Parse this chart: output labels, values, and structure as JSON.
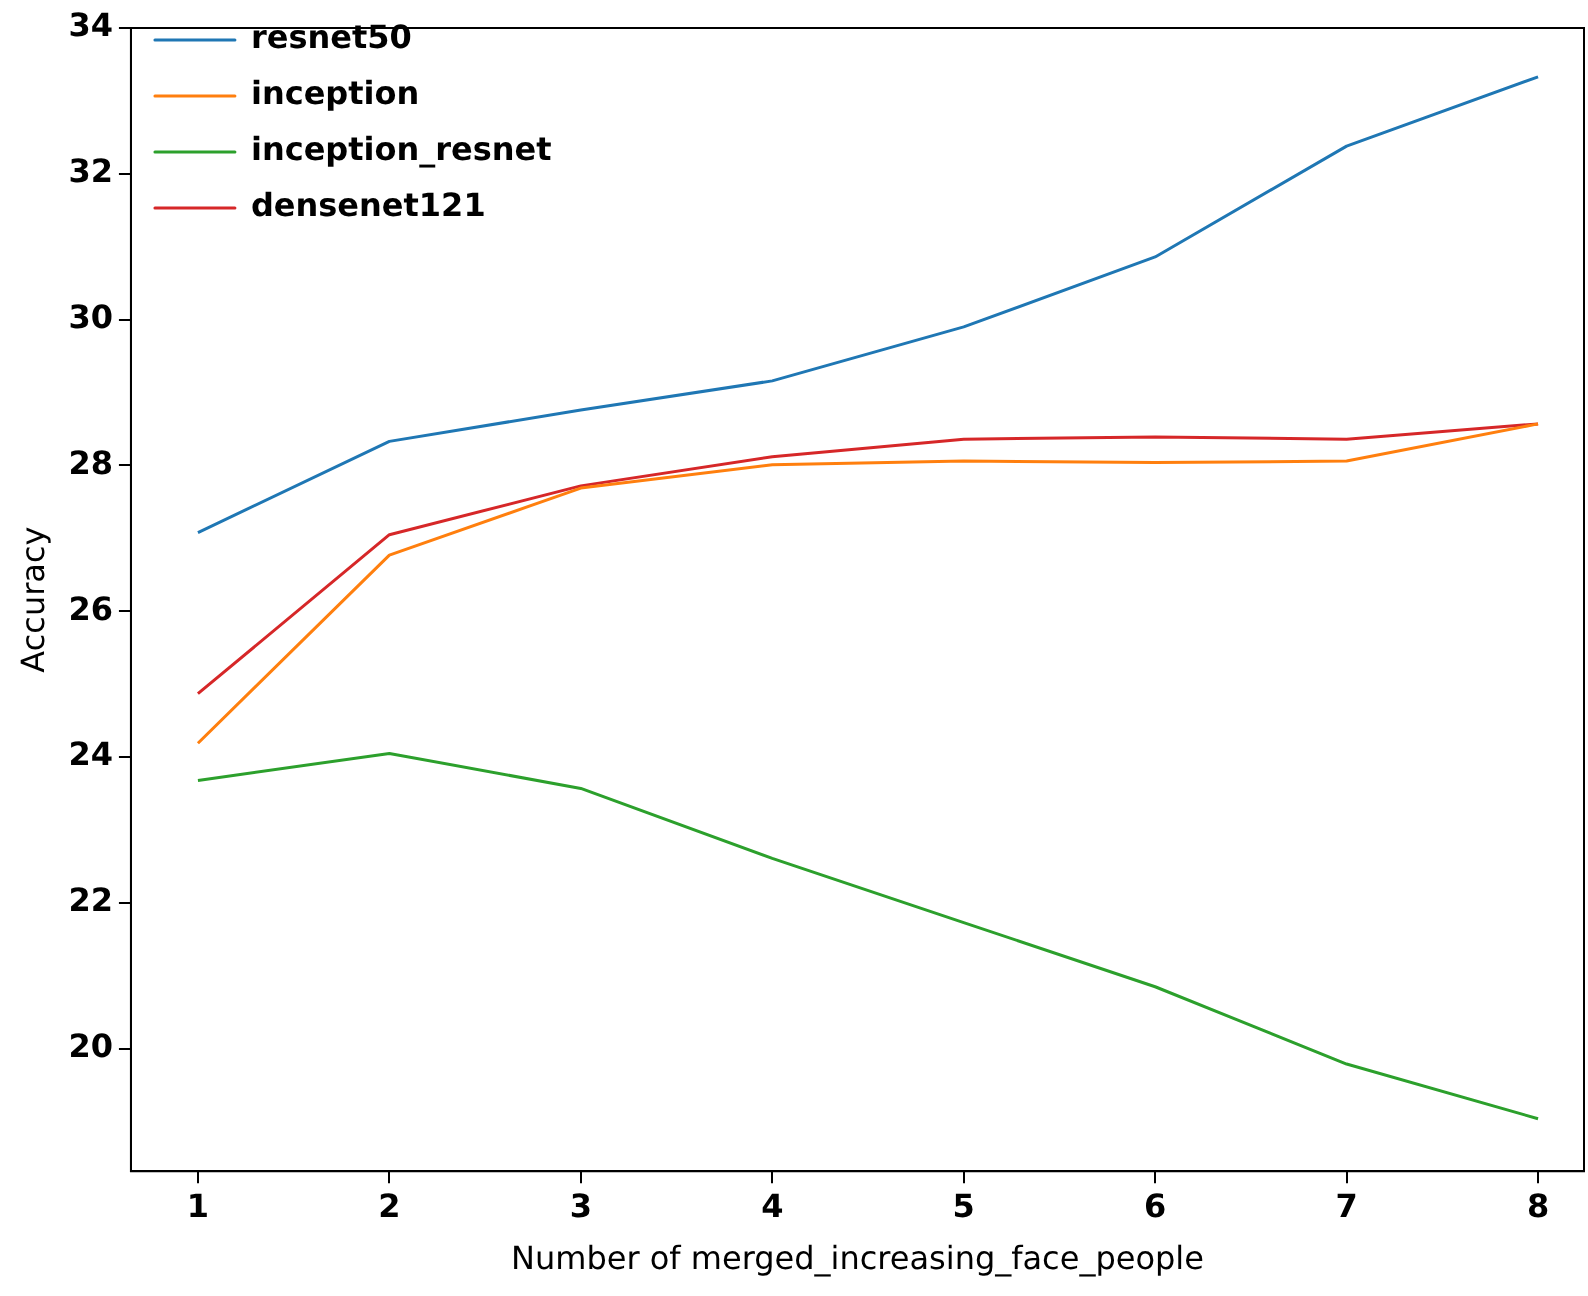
{
  "chart_data": {
    "type": "line",
    "xlabel": "Number of merged_increasing_face_people",
    "ylabel": "Accuracy",
    "x": [
      1,
      2,
      3,
      4,
      5,
      6,
      7,
      8
    ],
    "series": [
      {
        "name": "resnet50",
        "color": "#1f77b4",
        "values": [
          27.08,
          28.33,
          28.76,
          29.16,
          29.9,
          30.86,
          32.38,
          33.33
        ]
      },
      {
        "name": "inception",
        "color": "#ff7f0e",
        "values": [
          24.19,
          26.77,
          27.69,
          28.01,
          28.06,
          28.04,
          28.06,
          28.57
        ]
      },
      {
        "name": "inception_resnet",
        "color": "#2ca02c",
        "values": [
          23.68,
          24.05,
          23.57,
          22.61,
          21.73,
          20.85,
          19.79,
          19.04
        ]
      },
      {
        "name": "densenet121",
        "color": "#d62728",
        "values": [
          24.87,
          27.05,
          27.72,
          28.12,
          28.36,
          28.39,
          28.36,
          28.57
        ]
      }
    ],
    "xlim": [
      0.65,
      8.24
    ],
    "ylim": [
      18.32,
      34
    ],
    "xticks": [
      1,
      2,
      3,
      4,
      5,
      6,
      7,
      8
    ],
    "yticks": [
      20,
      22,
      24,
      26,
      28,
      30,
      32,
      34
    ],
    "legend": "top left",
    "grid": false,
    "marker": "none",
    "line_style": "solid"
  }
}
